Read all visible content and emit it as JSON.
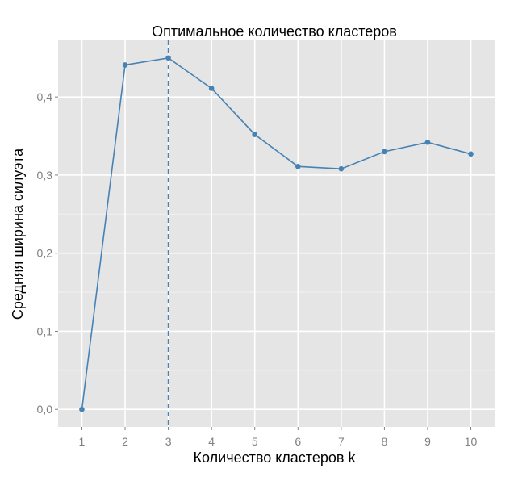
{
  "chart_data": {
    "type": "line",
    "title": "Оптимальное количество кластеров",
    "xlabel": "Количество кластеров k",
    "ylabel": "Средняя ширина силуэта",
    "x": [
      1,
      2,
      3,
      4,
      5,
      6,
      7,
      8,
      9,
      10
    ],
    "x_tick_labels": [
      "1",
      "2",
      "3",
      "4",
      "5",
      "6",
      "7",
      "8",
      "9",
      "10"
    ],
    "series": [
      {
        "values": [
          0.0,
          0.441,
          0.45,
          0.411,
          0.352,
          0.311,
          0.308,
          0.33,
          0.342,
          0.327
        ]
      }
    ],
    "y_ticks": [
      0.0,
      0.1,
      0.2,
      0.3,
      0.4
    ],
    "y_tick_labels": [
      "0,0",
      "0,1",
      "0,2",
      "0,3",
      "0,4"
    ],
    "xlim": [
      0.45,
      10.55
    ],
    "ylim": [
      -0.0225,
      0.4725
    ],
    "vline": {
      "x": 3,
      "style": "dashed"
    },
    "grid": true,
    "colors": {
      "panel_background": "#e5e5e5",
      "grid_major": "#ffffff",
      "grid_minor": "#f2f2f2",
      "series": "#4682b4",
      "tick_label": "#7f7f7f"
    }
  }
}
